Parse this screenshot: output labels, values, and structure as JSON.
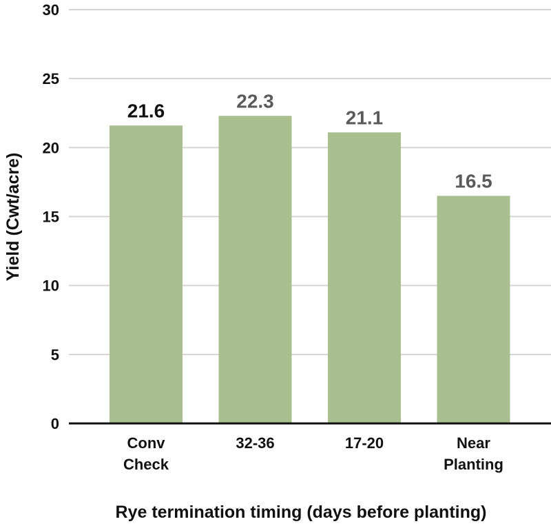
{
  "chart_data": {
    "type": "bar",
    "title": "",
    "xlabel": "Rye termination timing (days before planting)",
    "ylabel": "Yield (Cwt/acre)",
    "ylim": [
      0,
      30
    ],
    "yticks": [
      0,
      5,
      10,
      15,
      20,
      25,
      30
    ],
    "grid": true,
    "categories": [
      [
        "Conv",
        "Check"
      ],
      [
        "32-36"
      ],
      [
        "17-20"
      ],
      [
        "Near",
        "Planting"
      ]
    ],
    "values": [
      21.6,
      22.3,
      21.1,
      16.5
    ],
    "data_labels": [
      "21.6",
      "22.3",
      "21.1",
      "16.5"
    ],
    "label_colors": [
      "#111111",
      "#5a5a5a",
      "#5a5a5a",
      "#5a5a5a"
    ],
    "colors": {
      "bar": "#a9bf8f",
      "grid": "#d4d4d4",
      "axis": "#111111"
    }
  }
}
